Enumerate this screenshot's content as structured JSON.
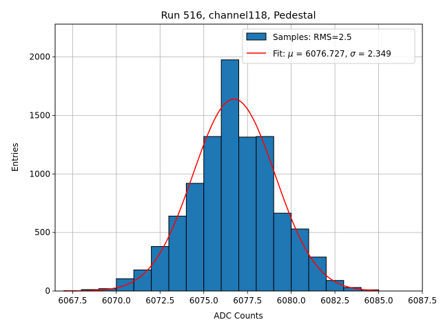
{
  "chart_data": {
    "type": "bar",
    "title": "Run 516, channel118, Pedestal",
    "xlabel": "ADC Counts",
    "ylabel": "Entries",
    "xlim": [
      6066.5,
      6087.5
    ],
    "ylim": [
      0,
      2280
    ],
    "xticks": [
      6067.5,
      6070.0,
      6072.5,
      6075.0,
      6077.5,
      6080.0,
      6082.5,
      6085.0,
      6087.5
    ],
    "xtick_labels": [
      "6067.5",
      "6070.0",
      "6072.5",
      "6075.0",
      "6077.5",
      "6080.0",
      "6082.5",
      "6085.0",
      "6087.5"
    ],
    "yticks": [
      0,
      500,
      1000,
      1500,
      2000
    ],
    "ytick_labels": [
      "0",
      "500",
      "1000",
      "1500",
      "2000"
    ],
    "grid": true,
    "legend_position": "top-right",
    "bin_width": 1,
    "series": [
      {
        "name": "Samples: RMS=2.5",
        "kind": "histogram",
        "color": "#1f77b4",
        "edgecolor": "#000000",
        "bin_starts": [
          6067,
          6068,
          6069,
          6070,
          6071,
          6072,
          6073,
          6074,
          6075,
          6076,
          6077,
          6078,
          6079,
          6080,
          6081,
          6082,
          6083,
          6084,
          6085,
          6086
        ],
        "values": [
          3,
          12,
          20,
          105,
          180,
          380,
          640,
          920,
          1320,
          1975,
          1315,
          1320,
          665,
          530,
          290,
          90,
          30,
          10,
          0,
          0
        ]
      },
      {
        "name_prefix": "Fit: ",
        "name_mu": "μ",
        "name_mid": " = 6076.727, ",
        "name_sigma": "σ",
        "name_suffix": " = 2.349",
        "kind": "gaussian",
        "color": "#ff0000",
        "mu": 6076.727,
        "sigma": 2.349,
        "amplitude": 1640,
        "x_range": [
          6067,
          6085
        ]
      }
    ]
  }
}
